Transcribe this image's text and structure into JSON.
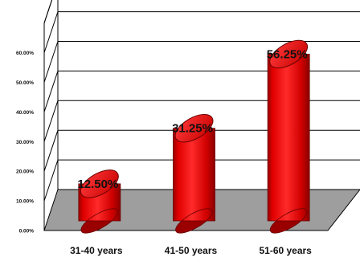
{
  "chart_data": {
    "type": "bar",
    "style": "3d-cylinder",
    "categories": [
      "31-40 years",
      "41-50 years",
      "51-60 years"
    ],
    "values": [
      12.5,
      31.25,
      56.25
    ],
    "value_labels": [
      "12.50%",
      "31.25%",
      "56.25%"
    ],
    "y_tick_labels": [
      "0.00%",
      "10.00%",
      "20.00%",
      "30.00%",
      "40.00%",
      "50.00%",
      "60.00%"
    ],
    "y_ticks": [
      0,
      10,
      20,
      30,
      40,
      50,
      60
    ],
    "ylim": [
      0,
      70
    ],
    "grid": true,
    "legend": "none",
    "title": "",
    "xlabel": "",
    "ylabel": "",
    "colors": {
      "bar": "#ff1a1a",
      "bar_dark": "#9a0000",
      "floor": "#9e9e9e",
      "gridline": "#000000"
    }
  }
}
